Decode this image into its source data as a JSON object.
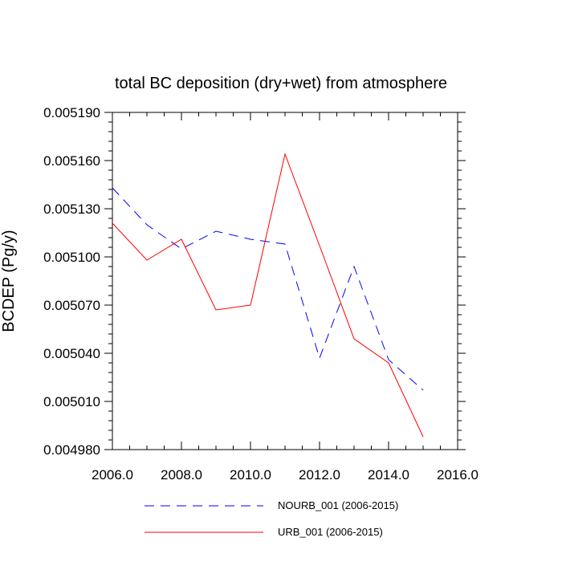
{
  "chart_data": {
    "type": "line",
    "title": "total BC deposition (dry+wet) from atmosphere",
    "xlabel": "",
    "ylabel": "BCDEP  (Pg/y)",
    "xlim": [
      2006.0,
      2016.0
    ],
    "ylim": [
      0.00498,
      0.00519
    ],
    "x_ticks": [
      2006.0,
      2008.0,
      2010.0,
      2012.0,
      2014.0,
      2016.0
    ],
    "x_tick_labels": [
      "2006.0",
      "2008.0",
      "2010.0",
      "2012.0",
      "2014.0",
      "2016.0"
    ],
    "y_ticks": [
      0.00498,
      0.00501,
      0.00504,
      0.00507,
      0.0051,
      0.00513,
      0.00516,
      0.00519
    ],
    "y_tick_labels": [
      "0.004980",
      "0.005010",
      "0.005040",
      "0.005070",
      "0.005100",
      "0.005130",
      "0.005160",
      "0.005190"
    ],
    "grid": false,
    "legend_position": "bottom",
    "x": [
      2006,
      2007,
      2008,
      2009,
      2010,
      2011,
      2012,
      2013,
      2014,
      2015
    ],
    "series": [
      {
        "name": "NOURB_001 (2006-2015)",
        "color": "#0000ff",
        "style": "dashed",
        "values": [
          0.005143,
          0.00512,
          0.005105,
          0.005116,
          0.005111,
          0.005108,
          0.005037,
          0.005094,
          0.005036,
          0.005017
        ]
      },
      {
        "name": "URB_001 (2006-2015)",
        "color": "#ff0000",
        "style": "solid",
        "values": [
          0.005121,
          0.005098,
          0.005111,
          0.005067,
          0.00507,
          0.005164,
          0.005107,
          0.005049,
          0.005034,
          0.004988
        ]
      }
    ]
  }
}
